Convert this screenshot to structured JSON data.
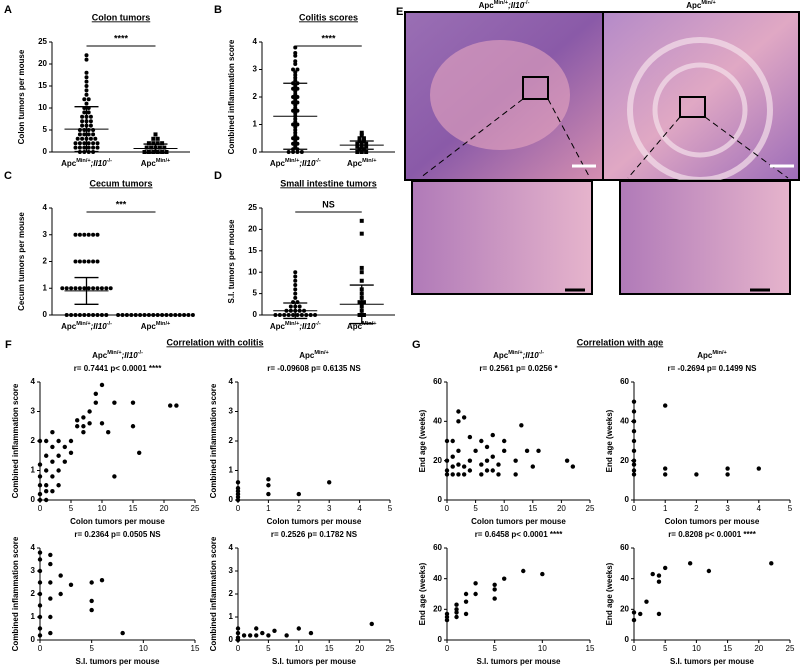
{
  "figure_sections": [
    {
      "panel": "F",
      "title": "Correlation with colitis"
    },
    {
      "panel": "G",
      "title": "Correlation with age"
    }
  ],
  "histology": {
    "panel": "E",
    "titles": [
      [
        "Apc",
        "Min/+",
        ";Il10",
        "-/-"
      ],
      [
        "Apc",
        "Min/+"
      ]
    ]
  },
  "chart_data": [
    {
      "panel": "A",
      "type": "dot",
      "title": "Colon tumors",
      "ylabel": "Colon tumors per mouse",
      "ylim": [
        0,
        25
      ],
      "yticks": [
        0,
        5,
        10,
        15,
        20,
        25
      ],
      "significance": "****",
      "groups": [
        {
          "label": [
            "Apc",
            "Min/+",
            ";Il10",
            "-/-"
          ],
          "marker": "circle",
          "values": [
            22,
            21,
            18,
            17,
            16,
            15,
            14,
            13,
            12,
            12,
            11,
            10,
            10,
            9,
            9,
            8,
            8,
            8,
            7,
            7,
            7,
            6,
            6,
            6,
            5,
            5,
            5,
            5,
            4,
            4,
            4,
            4,
            3,
            3,
            3,
            3,
            3,
            2,
            2,
            2,
            2,
            2,
            2,
            1,
            1,
            1,
            1,
            1,
            1,
            0,
            0,
            0,
            0
          ],
          "mean": 5.2,
          "error": 5.1
        },
        {
          "label": [
            "Apc",
            "Min/+"
          ],
          "marker": "square",
          "values": [
            4,
            3,
            3,
            2,
            2,
            2,
            2,
            1,
            1,
            1,
            1,
            1,
            0,
            0,
            0,
            0,
            0,
            0
          ],
          "mean": 0.8,
          "error": 1
        }
      ]
    },
    {
      "panel": "B",
      "type": "dot",
      "title": "Colitis scores",
      "ylabel": "Combined inflammation score",
      "ylim": [
        0,
        4
      ],
      "yticks": [
        0,
        1,
        2,
        3,
        4
      ],
      "significance": "****",
      "groups": [
        {
          "label": [
            "Apc",
            "Min/+",
            ";Il10",
            "-/-"
          ],
          "marker": "circle",
          "values": [
            3.8,
            3.6,
            3.5,
            3.3,
            3.2,
            3.0,
            3.0,
            2.9,
            2.8,
            2.7,
            2.6,
            2.5,
            2.5,
            2.4,
            2.3,
            2.3,
            2.2,
            2.1,
            2.0,
            2.0,
            1.9,
            1.8,
            1.8,
            1.7,
            1.6,
            1.5,
            1.5,
            1.4,
            1.3,
            1.2,
            1.1,
            1.0,
            1.0,
            0.9,
            0.8,
            0.7,
            0.6,
            0.5,
            0.5,
            0.4,
            0.3,
            0.3,
            0.2,
            0.1,
            0.1,
            0,
            0,
            0,
            0
          ],
          "mean": 1.3,
          "error": 1.2
        },
        {
          "label": [
            "Apc",
            "Min/+"
          ],
          "marker": "square",
          "values": [
            0.7,
            0.6,
            0.5,
            0.5,
            0.4,
            0.4,
            0.3,
            0.3,
            0.3,
            0.2,
            0.2,
            0.2,
            0.1,
            0.1,
            0,
            0,
            0
          ],
          "mean": 0.25,
          "error": 0.15
        }
      ]
    },
    {
      "panel": "C",
      "type": "dot",
      "title": "Cecum tumors",
      "ylabel": "Cecum tumors per mouse",
      "ylim": [
        0,
        4
      ],
      "yticks": [
        0,
        1,
        2,
        3,
        4
      ],
      "significance": "***",
      "groups": [
        {
          "label": [
            "Apc",
            "Min/+",
            ";Il10",
            "-/-"
          ],
          "marker": "circle",
          "values": [
            3,
            3,
            3,
            3,
            3,
            3,
            2,
            2,
            2,
            2,
            2,
            2,
            1,
            1,
            1,
            1,
            1,
            1,
            1,
            1,
            1,
            1,
            1,
            1,
            0,
            0,
            0,
            0,
            0,
            0,
            0,
            0,
            0,
            0
          ],
          "mean": 0.9,
          "error": 0.5
        },
        {
          "label": [
            "Apc",
            "Min/+"
          ],
          "marker": "circle",
          "values": [
            0,
            0,
            0,
            0,
            0,
            0,
            0,
            0,
            0,
            0,
            0,
            0,
            0,
            0,
            0,
            0,
            0,
            0
          ],
          "mean": 0,
          "error": 0
        }
      ]
    },
    {
      "panel": "D",
      "type": "dot",
      "title": "Small intestine tumors",
      "ylabel": "S.I. tumors per mouse",
      "ylim": [
        0,
        25
      ],
      "yticks": [
        0,
        5,
        10,
        15,
        20,
        25
      ],
      "significance": "NS",
      "groups": [
        {
          "label": [
            "Apc",
            "Min/+",
            ";Il10",
            "-/-"
          ],
          "marker": "circle",
          "values": [
            10,
            9,
            8,
            7,
            6,
            5,
            4,
            3,
            3,
            2,
            2,
            2,
            1,
            1,
            1,
            1,
            1,
            0,
            0,
            0,
            0,
            0,
            0,
            0,
            0,
            0,
            0
          ],
          "mean": 1,
          "error": 1.8
        },
        {
          "label": [
            "Apc",
            "Min/+"
          ],
          "marker": "square",
          "values": [
            22,
            19,
            11,
            10,
            8,
            6,
            5,
            4,
            3,
            3,
            2,
            1,
            0,
            0
          ],
          "mean": 2.5,
          "error": 4.5
        }
      ]
    },
    {
      "type": "scatter",
      "title": [
        "Apc",
        "Min/+",
        ";Il10",
        "-/-"
      ],
      "stats": "r= 0.7441 p< 0.0001 ****",
      "xlabel": "Colon tumors per mouse",
      "ylabel": "Combined inflammation score",
      "xlim": [
        0,
        25
      ],
      "xticks": [
        0,
        5,
        10,
        15,
        20,
        25
      ],
      "ylim": [
        0,
        4
      ],
      "yticks": [
        0,
        1,
        2,
        3,
        4
      ],
      "x": [
        0,
        0,
        0,
        0,
        0,
        0,
        1,
        1,
        1,
        1,
        1,
        1,
        2,
        2,
        2,
        2,
        2,
        3,
        3,
        3,
        3,
        4,
        4,
        5,
        5,
        6,
        6,
        7,
        7,
        7,
        8,
        8,
        9,
        9,
        10,
        10,
        11,
        12,
        12,
        15,
        15,
        16,
        21,
        22
      ],
      "values": [
        0,
        0.2,
        0.5,
        0.8,
        1.2,
        2,
        0,
        0.3,
        0.5,
        1,
        1.5,
        2,
        0.3,
        0.8,
        1.3,
        1.8,
        2.3,
        0.5,
        1,
        1.5,
        2,
        1.3,
        1.8,
        1.6,
        2,
        2.5,
        2.7,
        2.3,
        2.5,
        2.8,
        2.6,
        3,
        3.3,
        3.6,
        3.9,
        2.6,
        2.3,
        0.8,
        3.3,
        2.5,
        3.3,
        1.6,
        3.2,
        3.2
      ]
    },
    {
      "type": "scatter",
      "title": [
        "Apc",
        "Min/+"
      ],
      "stats": "r= -0.09608 p= 0.6135 NS",
      "xlabel": "Colon tumors per mouse",
      "ylabel": "Combined inflammation score",
      "xlim": [
        0,
        5
      ],
      "xticks": [
        0,
        1,
        2,
        3,
        4,
        5
      ],
      "ylim": [
        0,
        4
      ],
      "yticks": [
        0,
        1,
        2,
        3,
        4
      ],
      "x": [
        0,
        0,
        0,
        0,
        0,
        0,
        1,
        1,
        1,
        2,
        3
      ],
      "values": [
        0,
        0.1,
        0.2,
        0.3,
        0.4,
        0.6,
        0.2,
        0.5,
        0.7,
        0.2,
        0.6
      ]
    },
    {
      "type": "scatter",
      "stats": "r= 0.2364 p= 0.0505 NS",
      "xlabel": "S.I. tumors per mouse",
      "ylabel": "Combined inflammation score",
      "xlim": [
        0,
        15
      ],
      "xticks": [
        0,
        5,
        10,
        15
      ],
      "ylim": [
        0,
        4
      ],
      "yticks": [
        0,
        1,
        2,
        3,
        4
      ],
      "x": [
        0,
        0,
        0,
        0,
        0,
        0,
        0,
        0,
        0,
        1,
        1,
        1,
        1,
        1,
        1,
        2,
        2,
        3,
        5,
        5,
        5,
        6,
        8
      ],
      "values": [
        0.2,
        0.5,
        1,
        1.5,
        2,
        2.5,
        3,
        3.5,
        3.8,
        0.3,
        1,
        1.8,
        2.5,
        3.3,
        3.7,
        2.8,
        2,
        2.4,
        1.3,
        1.7,
        2.5,
        2.6,
        0.3
      ]
    },
    {
      "type": "scatter",
      "stats": "r= 0.2526 p= 0.1782 NS",
      "xlabel": "S.I. tumors per mouse",
      "ylabel": "Combined inflammation score",
      "xlim": [
        0,
        25
      ],
      "xticks": [
        0,
        5,
        10,
        15,
        20,
        25
      ],
      "ylim": [
        0,
        4
      ],
      "yticks": [
        0,
        1,
        2,
        3,
        4
      ],
      "x": [
        0,
        0,
        0,
        0,
        1,
        2,
        3,
        3,
        4,
        5,
        6,
        8,
        10,
        12,
        22
      ],
      "values": [
        0,
        0.1,
        0.3,
        0.5,
        0.2,
        0.2,
        0.2,
        0.5,
        0.3,
        0.2,
        0.4,
        0.2,
        0.5,
        0.3,
        0.7
      ]
    },
    {
      "type": "scatter",
      "title": [
        "Apc",
        "Min/+",
        ";Il10",
        "-/-"
      ],
      "stats": "r= 0.2561 p= 0.0256 *",
      "xlabel": "Colon tumors per mouse",
      "ylabel": "End age (weeks)",
      "xlim": [
        0,
        25
      ],
      "xticks": [
        0,
        5,
        10,
        15,
        20,
        25
      ],
      "ylim": [
        0,
        60
      ],
      "yticks": [
        0,
        20,
        40,
        60
      ],
      "x": [
        0,
        0,
        0,
        0,
        1,
        1,
        1,
        1,
        2,
        2,
        2,
        2,
        2,
        3,
        3,
        3,
        4,
        4,
        4,
        5,
        6,
        6,
        6,
        7,
        7,
        7,
        8,
        8,
        8,
        9,
        9,
        10,
        10,
        12,
        12,
        13,
        14,
        15,
        16,
        21,
        22
      ],
      "values": [
        13,
        15,
        20,
        30,
        13,
        17,
        22,
        30,
        13,
        18,
        25,
        40,
        45,
        13,
        17,
        42,
        15,
        20,
        32,
        25,
        13,
        18,
        30,
        15,
        20,
        27,
        15,
        22,
        33,
        13,
        18,
        25,
        30,
        13,
        20,
        38,
        25,
        17,
        25,
        20,
        17
      ]
    },
    {
      "type": "scatter",
      "title": [
        "Apc",
        "Min/+"
      ],
      "stats": "r= -0.2694 p= 0.1499 NS",
      "xlabel": "Colon tumors per mouse",
      "ylabel": "End age (weeks)",
      "xlim": [
        0,
        5
      ],
      "xticks": [
        0,
        1,
        2,
        3,
        4,
        5
      ],
      "ylim": [
        0,
        60
      ],
      "yticks": [
        0,
        20,
        40,
        60
      ],
      "x": [
        0,
        0,
        0,
        0,
        0,
        0,
        0,
        0,
        0,
        0,
        1,
        1,
        1,
        2,
        3,
        3,
        4
      ],
      "values": [
        13,
        15,
        18,
        20,
        25,
        30,
        35,
        40,
        45,
        50,
        13,
        16,
        48,
        13,
        13,
        16,
        16
      ]
    },
    {
      "type": "scatter",
      "stats": "r= 0.6458 p< 0.0001 ****",
      "xlabel": "S.I. tumors per mouse",
      "ylabel": "End age (weeks)",
      "xlim": [
        0,
        15
      ],
      "xticks": [
        0,
        5,
        10,
        15
      ],
      "ylim": [
        0,
        60
      ],
      "yticks": [
        0,
        20,
        40,
        60
      ],
      "x": [
        0,
        0,
        0,
        1,
        1,
        1,
        1,
        2,
        2,
        2,
        3,
        3,
        5,
        5,
        5,
        6,
        8,
        10
      ],
      "values": [
        13,
        15,
        17,
        15,
        18,
        20,
        23,
        17,
        25,
        30,
        30,
        37,
        27,
        33,
        36,
        40,
        45,
        43
      ]
    },
    {
      "type": "scatter",
      "stats": "r= 0.8208 p< 0.0001 ****",
      "xlabel": "S.I. tumors per mouse",
      "ylabel": "End age (weeks)",
      "xlim": [
        0,
        25
      ],
      "xticks": [
        0,
        5,
        10,
        15,
        20,
        25
      ],
      "ylim": [
        0,
        60
      ],
      "yticks": [
        0,
        20,
        40,
        60
      ],
      "x": [
        0,
        0,
        1,
        2,
        3,
        4,
        4,
        4,
        5,
        9,
        12,
        22
      ],
      "values": [
        13,
        18,
        17,
        25,
        43,
        17,
        38,
        42,
        47,
        50,
        45,
        50
      ]
    }
  ]
}
